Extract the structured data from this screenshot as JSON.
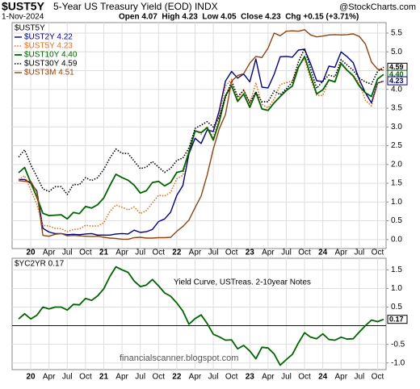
{
  "chart_data": [
    {
      "type": "line",
      "symbol": "$UST5Y",
      "description": "5-Year US Treasury Yield (EOD) INDX",
      "source": "@StockCharts.com",
      "date": "1-Nov-2024",
      "quote": "Open 4.07  High 4.23  Low 4.05  Close 4.23  Chg +0.15 (+3.71%)",
      "legend_title": "$UST5Y",
      "categories": [
        null,
        null,
        "20",
        null,
        null,
        "Apr",
        null,
        null,
        "Jul",
        null,
        null,
        "Oct",
        null,
        null,
        "21",
        null,
        null,
        "Apr",
        null,
        null,
        "Jul",
        null,
        null,
        "Oct",
        null,
        null,
        "22",
        null,
        null,
        "Apr",
        null,
        null,
        "Jul",
        null,
        null,
        "Oct",
        null,
        null,
        "23",
        null,
        null,
        "Apr",
        null,
        null,
        "Jul",
        null,
        null,
        "Oct",
        null,
        null,
        "24",
        null,
        null,
        "Apr",
        null,
        null,
        "Jul",
        null,
        null,
        "Oct",
        null
      ],
      "series": [
        {
          "name": "$UST2Y 4.22",
          "color": "#000080",
          "style": "solid",
          "values": [
            1.6,
            1.6,
            1.5,
            1.3,
            0.3,
            0.2,
            0.16,
            0.16,
            0.13,
            0.14,
            0.13,
            0.15,
            0.16,
            0.12,
            0.12,
            0.12,
            0.15,
            0.16,
            0.15,
            0.25,
            0.19,
            0.21,
            0.27,
            0.48,
            0.55,
            0.73,
            1.18,
            1.44,
            2.28,
            2.7,
            2.56,
            2.92,
            2.88,
            3.45,
            4.22,
            4.48,
            4.3,
            4.41,
            4.2,
            4.81,
            4.06,
            4.04,
            4.4,
            4.87,
            4.88,
            4.86,
            5.05,
            5.07,
            4.68,
            4.23,
            4.21,
            4.62,
            4.59,
            5.0,
            4.87,
            4.71,
            4.26,
            3.91,
            3.64,
            4.17,
            4.22
          ]
        },
        {
          "name": "$UST5Y 4.23",
          "color": "#e07020",
          "style": "dotted",
          "values": [
            1.6,
            1.7,
            1.32,
            0.94,
            0.38,
            0.36,
            0.3,
            0.29,
            0.21,
            0.27,
            0.28,
            0.38,
            0.36,
            0.36,
            0.45,
            0.75,
            0.92,
            0.86,
            0.79,
            0.87,
            0.69,
            0.77,
            0.98,
            1.18,
            1.16,
            1.26,
            1.62,
            1.71,
            2.42,
            2.92,
            2.81,
            3.01,
            2.7,
            3.3,
            4.09,
            4.27,
            3.74,
            4.0,
            3.62,
            4.18,
            3.6,
            3.51,
            3.74,
            4.13,
            4.18,
            4.23,
            4.61,
            4.82,
            4.27,
            3.84,
            3.84,
            4.26,
            4.21,
            4.72,
            4.52,
            4.38,
            4.17,
            3.71,
            3.56,
            4.16,
            4.23
          ]
        },
        {
          "name": "$UST10Y 4.40",
          "color": "#006400",
          "style": "thick",
          "values": [
            1.78,
            1.92,
            1.51,
            1.13,
            0.7,
            0.64,
            0.65,
            0.66,
            0.55,
            0.72,
            0.69,
            0.88,
            0.84,
            0.93,
            1.11,
            1.44,
            1.74,
            1.65,
            1.58,
            1.45,
            1.24,
            1.3,
            1.52,
            1.55,
            1.43,
            1.52,
            1.79,
            1.83,
            2.32,
            2.89,
            2.85,
            2.98,
            2.65,
            3.15,
            3.83,
            4.1,
            3.68,
            3.88,
            3.52,
            3.92,
            3.48,
            3.44,
            3.64,
            3.81,
            3.97,
            4.09,
            4.59,
            4.88,
            4.37,
            3.88,
            3.99,
            4.25,
            4.2,
            4.69,
            4.51,
            4.36,
            4.09,
            3.91,
            3.81,
            4.28,
            4.4
          ]
        },
        {
          "name": "$UST30Y 4.59",
          "color": "#000000",
          "style": "dotted",
          "values": [
            2.2,
            2.39,
            1.99,
            1.68,
            1.35,
            1.28,
            1.41,
            1.41,
            1.2,
            1.47,
            1.46,
            1.65,
            1.57,
            1.65,
            1.87,
            2.17,
            2.41,
            2.3,
            2.29,
            2.09,
            1.89,
            1.93,
            2.08,
            1.93,
            1.79,
            1.9,
            2.11,
            2.17,
            2.44,
            2.96,
            3.05,
            3.14,
            3.0,
            3.27,
            3.79,
            4.22,
            3.81,
            3.97,
            3.65,
            3.93,
            3.67,
            3.67,
            3.96,
            3.86,
            4.01,
            4.2,
            4.73,
            5.09,
            4.54,
            4.03,
            4.22,
            4.38,
            4.34,
            4.79,
            4.65,
            4.51,
            4.3,
            4.2,
            4.14,
            4.48,
            4.59
          ]
        },
        {
          "name": "$UST3M 4.51",
          "color": "#8b4513",
          "style": "solid",
          "values": [
            1.57,
            1.55,
            1.55,
            1.27,
            0.11,
            0.09,
            0.14,
            0.16,
            0.1,
            0.11,
            0.1,
            0.09,
            0.08,
            0.09,
            0.06,
            0.04,
            0.03,
            0.01,
            0.01,
            0.05,
            0.06,
            0.04,
            0.04,
            0.05,
            0.05,
            0.06,
            0.22,
            0.35,
            0.52,
            0.85,
            1.16,
            1.72,
            2.41,
            2.96,
            3.33,
            4.22,
            4.37,
            4.42,
            4.7,
            4.88,
            4.85,
            5.1,
            5.5,
            5.43,
            5.55,
            5.56,
            5.55,
            5.59,
            5.45,
            5.4,
            5.42,
            5.45,
            5.46,
            5.45,
            5.46,
            5.48,
            5.41,
            5.21,
            4.73,
            4.54,
            4.51
          ]
        }
      ],
      "end_labels": [
        {
          "value": 4.59,
          "label": "4.59",
          "color": "#000000"
        },
        {
          "value": 4.4,
          "label": "4.40",
          "color": "#006400"
        },
        {
          "value": 4.23,
          "label": "4.23",
          "color": "#000080"
        }
      ],
      "ylim": [
        -0.24,
        5.78
      ],
      "yticks": [
        {
          "value": 0,
          "label": "0.0"
        },
        0.5,
        {
          "value": 1,
          "label": "1.0"
        },
        1.5,
        {
          "value": 2,
          "label": "2.0"
        },
        2.5,
        {
          "value": 3,
          "label": "3.0"
        },
        3.5,
        {
          "value": 4,
          "label": "4.0"
        },
        4.5,
        {
          "value": 5,
          "label": "5.0"
        },
        5.5
      ],
      "grid": true
    },
    {
      "type": "line",
      "label": "$YC2YR 0.17",
      "annotation": "Yield Curve, USTreas. 2-10year Notes",
      "watermark": "financialscanner.blogspot.com",
      "categories": [
        null,
        null,
        "20",
        null,
        null,
        "Apr",
        null,
        null,
        "Jul",
        null,
        null,
        "Oct",
        null,
        null,
        "21",
        null,
        null,
        "Apr",
        null,
        null,
        "Jul",
        null,
        null,
        "Oct",
        null,
        null,
        "22",
        null,
        null,
        "Apr",
        null,
        null,
        "Jul",
        null,
        null,
        "Oct",
        null,
        null,
        "23",
        null,
        null,
        "Apr",
        null,
        null,
        "Jul",
        null,
        null,
        "Oct",
        null,
        null,
        "24",
        null,
        null,
        "Apr",
        null,
        null,
        "Jul",
        null,
        null,
        "Oct",
        null
      ],
      "series": [
        {
          "name": "$YC2YR",
          "color": "#006400",
          "style": "thick",
          "values": [
            0.18,
            0.32,
            0.18,
            0.28,
            0.5,
            0.45,
            0.5,
            0.5,
            0.42,
            0.57,
            0.56,
            0.73,
            0.68,
            0.8,
            0.99,
            1.32,
            1.58,
            1.5,
            1.43,
            1.2,
            1.05,
            1.09,
            1.24,
            1.07,
            0.88,
            0.79,
            0.61,
            0.39,
            0.04,
            0.19,
            0.29,
            0.06,
            -0.23,
            -0.3,
            -0.39,
            -0.38,
            -0.62,
            -0.53,
            -0.68,
            -0.89,
            -0.58,
            -0.6,
            -0.76,
            -1.06,
            -0.91,
            -0.77,
            -0.46,
            -0.19,
            -0.31,
            -0.35,
            -0.22,
            -0.37,
            -0.39,
            -0.31,
            -0.36,
            -0.35,
            -0.17,
            0.0,
            0.15,
            0.11,
            0.17
          ]
        }
      ],
      "end_labels": [
        {
          "value": 0.17,
          "label": "0.17",
          "color": "#000000"
        }
      ],
      "hline": 0,
      "ylim": [
        -1.18,
        1.81
      ],
      "yticks": [
        {
          "value": 1.5,
          "label": "1.5"
        },
        {
          "value": 1,
          "label": "1.0"
        },
        {
          "value": 0.5,
          "label": "0.5"
        },
        {
          "value": -0.5,
          "label": "-0.5"
        },
        {
          "value": -1,
          "label": "-1.0"
        }
      ],
      "grid": true
    }
  ]
}
